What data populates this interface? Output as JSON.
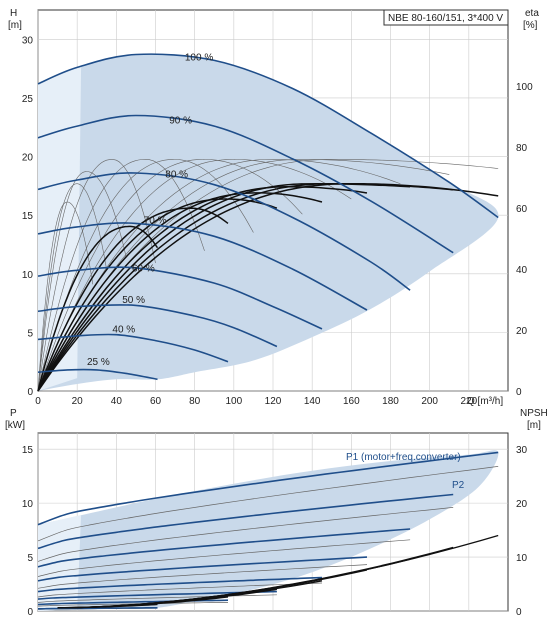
{
  "colors": {
    "area_fill": "#c9d9ea",
    "area_fill_light": "#e6eff8",
    "curve_blue": "#1f4e8a",
    "grid": "#cccccc",
    "axis": "#333333",
    "thin_line": "#666666",
    "black_line": "#111111"
  },
  "chart_data": [
    {
      "type": "line",
      "title": "NBE 80-160/151, 3*400 V",
      "xlabel": "Q [m³/h]",
      "y_left_label": [
        "H",
        "[m]"
      ],
      "y_right_label": [
        "eta",
        "[%]"
      ],
      "x_ticks": [
        0,
        20,
        40,
        60,
        80,
        100,
        120,
        140,
        160,
        180,
        200,
        220
      ],
      "x_tick_labels": [
        "0",
        "20",
        "40",
        "60",
        "80",
        "100",
        "120",
        "140",
        "160",
        "180",
        "200",
        "220"
      ],
      "xlim": [
        0,
        240
      ],
      "y_left_ticks": [
        0,
        5,
        10,
        15,
        20,
        25,
        30
      ],
      "ylim_left": [
        0,
        32.5
      ],
      "y_right_ticks": [
        0,
        20,
        40,
        60,
        80,
        100
      ],
      "ylim_right": [
        0,
        125
      ],
      "speed_labels": [
        "100 %",
        "90 %",
        "80 %",
        "70 %",
        "60 %",
        "50 %",
        "40 %",
        "25 %"
      ],
      "speed_label_positions": [
        [
          75,
          28.2
        ],
        [
          67,
          22.8
        ],
        [
          65,
          18.2
        ],
        [
          54,
          14.3
        ],
        [
          48,
          10.2
        ],
        [
          43,
          7.5
        ],
        [
          38,
          5.0
        ],
        [
          25,
          2.2
        ]
      ],
      "series": [
        {
          "label": "100 %",
          "q_max": 235,
          "x": [
            0,
            20,
            50,
            90,
            130,
            170,
            210,
            235
          ],
          "y": [
            26.2,
            27.6,
            28.7,
            28.2,
            25.8,
            22.0,
            17.8,
            14.8
          ]
        },
        {
          "label": "90 %",
          "q_max": 212,
          "x": [
            0,
            20,
            50,
            90,
            130,
            170,
            212
          ],
          "y": [
            21.6,
            22.6,
            23.5,
            22.6,
            19.8,
            16.2,
            11.8
          ]
        },
        {
          "label": "80 %",
          "q_max": 190,
          "x": [
            0,
            20,
            50,
            90,
            130,
            170,
            190
          ],
          "y": [
            17.2,
            18.0,
            18.6,
            17.6,
            14.8,
            11.0,
            8.6
          ]
        },
        {
          "label": "70 %",
          "q_max": 168,
          "x": [
            0,
            20,
            50,
            90,
            130,
            168
          ],
          "y": [
            13.4,
            14.0,
            14.3,
            13.2,
            10.4,
            6.9
          ]
        },
        {
          "label": "60 %",
          "q_max": 145,
          "x": [
            0,
            20,
            50,
            90,
            120,
            145
          ],
          "y": [
            9.8,
            10.3,
            10.5,
            9.2,
            7.2,
            5.3
          ]
        },
        {
          "label": "50 %",
          "q_max": 122,
          "x": [
            0,
            20,
            50,
            80,
            100,
            122
          ],
          "y": [
            6.8,
            7.2,
            7.3,
            6.4,
            5.4,
            3.8
          ]
        },
        {
          "label": "40 %",
          "q_max": 97,
          "x": [
            0,
            20,
            40,
            60,
            80,
            97
          ],
          "y": [
            4.4,
            4.7,
            4.8,
            4.3,
            3.5,
            2.5
          ]
        },
        {
          "label": "25 %",
          "q_max": 61,
          "x": [
            0,
            15,
            30,
            45,
            61
          ],
          "y": [
            1.6,
            1.8,
            1.8,
            1.5,
            1.0
          ]
        }
      ],
      "envelope": {
        "x": [
          0,
          20,
          50,
          90,
          130,
          170,
          210,
          235,
          200,
          170,
          140,
          110,
          80,
          61,
          40,
          20,
          0
        ],
        "y": [
          26.2,
          27.6,
          28.7,
          28.2,
          25.8,
          22.0,
          17.8,
          14.8,
          10.2,
          7.0,
          4.6,
          2.6,
          1.6,
          1.0,
          1.0,
          0.6,
          0
        ]
      },
      "light_region": {
        "x": [
          0,
          22,
          20,
          0
        ],
        "y": [
          26.2,
          27.7,
          1.1,
          0
        ]
      },
      "eta_curves": [
        {
          "q_max": 235,
          "peak_q": 160,
          "peak": 68,
          "end": 64
        },
        {
          "q_max": 212,
          "peak_q": 150,
          "peak": 68,
          "end": 66
        },
        {
          "q_max": 190,
          "peak_q": 140,
          "peak": 68,
          "end": 67
        },
        {
          "q_max": 168,
          "peak_q": 128,
          "peak": 67,
          "end": 65
        },
        {
          "q_max": 145,
          "peak_q": 112,
          "peak": 65,
          "end": 62
        },
        {
          "q_max": 122,
          "peak_q": 96,
          "peak": 63,
          "end": 60
        },
        {
          "q_max": 97,
          "peak_q": 78,
          "peak": 60,
          "end": 55
        },
        {
          "q_max": 61,
          "peak_q": 47,
          "peak": 54,
          "end": 47
        }
      ],
      "thin_eta_curves": [
        {
          "q_max": 235,
          "peak_q": 150,
          "peak": 76,
          "end": 73
        },
        {
          "q_max": 210,
          "peak_q": 135,
          "peak": 76,
          "end": 71
        },
        {
          "q_max": 185,
          "peak_q": 120,
          "peak": 76,
          "end": 68
        },
        {
          "q_max": 160,
          "peak_q": 100,
          "peak": 76,
          "end": 63
        },
        {
          "q_max": 135,
          "peak_q": 85,
          "peak": 76,
          "end": 58
        },
        {
          "q_max": 110,
          "peak_q": 70,
          "peak": 76,
          "end": 52
        },
        {
          "q_max": 85,
          "peak_q": 55,
          "peak": 76,
          "end": 46
        },
        {
          "q_max": 60,
          "peak_q": 38,
          "peak": 76,
          "end": 42
        }
      ],
      "thin_eta_extra": [
        {
          "q_max": 45,
          "peak_q": 25,
          "peak": 72,
          "end": 44
        },
        {
          "q_max": 35,
          "peak_q": 20,
          "peak": 68,
          "end": 40
        },
        {
          "q_max": 28,
          "peak_q": 15,
          "peak": 62,
          "end": 35
        }
      ]
    },
    {
      "type": "line",
      "x_ticks": [
        0,
        20,
        40,
        60,
        80,
        100,
        120,
        140,
        160,
        180,
        200,
        220
      ],
      "xlim": [
        0,
        240
      ],
      "y_left_label": [
        "P",
        "[kW]"
      ],
      "y_right_label": [
        "NPSH",
        "[m]"
      ],
      "y_left_ticks": [
        0,
        5,
        10,
        15
      ],
      "ylim_left": [
        0,
        16.5
      ],
      "y_right_ticks": [
        0,
        10,
        20,
        30
      ],
      "ylim_right": [
        0,
        33
      ],
      "annotations": [
        "P1 (motor+freq.converter)",
        "P2"
      ],
      "p1_series": [
        {
          "q_max": 235,
          "p0": 8.0,
          "pend": 14.7
        },
        {
          "q_max": 212,
          "p0": 5.8,
          "pend": 10.8
        },
        {
          "q_max": 190,
          "p0": 4.1,
          "pend": 7.6
        },
        {
          "q_max": 168,
          "p0": 2.8,
          "pend": 5.0
        },
        {
          "q_max": 145,
          "p0": 1.8,
          "pend": 3.1
        },
        {
          "q_max": 122,
          "p0": 1.1,
          "pend": 1.8
        },
        {
          "q_max": 97,
          "p0": 0.6,
          "pend": 1.0
        },
        {
          "q_max": 61,
          "p0": 0.2,
          "pend": 0.3
        }
      ],
      "p2_series": [
        {
          "q_max": 235,
          "p0": 6.5,
          "pend": 13.4
        },
        {
          "q_max": 212,
          "p0": 4.6,
          "pend": 9.6
        },
        {
          "q_max": 190,
          "p0": 3.2,
          "pend": 6.6
        },
        {
          "q_max": 168,
          "p0": 2.1,
          "pend": 4.3
        },
        {
          "q_max": 145,
          "p0": 1.3,
          "pend": 2.6
        },
        {
          "q_max": 122,
          "p0": 0.8,
          "pend": 1.5
        },
        {
          "q_max": 97,
          "p0": 0.45,
          "pend": 0.8
        },
        {
          "q_max": 61,
          "p0": 0.15,
          "pend": 0.25
        }
      ],
      "p_envelope": {
        "x": [
          0,
          20,
          60,
          100,
          140,
          180,
          220,
          235,
          225,
          200,
          170,
          140,
          110,
          80,
          61,
          40,
          20,
          0
        ],
        "y": [
          8.0,
          8.8,
          10.4,
          11.8,
          13.0,
          13.9,
          14.5,
          14.7,
          11.5,
          8.5,
          5.8,
          3.6,
          2.0,
          0.9,
          0.3,
          0.2,
          0.1,
          0
        ]
      },
      "npsh_series": [
        {
          "q_max": 235,
          "n_end": 14.0
        },
        {
          "q_max": 212,
          "n_end": 11.8
        },
        {
          "q_max": 190,
          "n_end": 9.6
        },
        {
          "q_max": 168,
          "n_end": 7.6
        },
        {
          "q_max": 145,
          "n_end": 5.6
        },
        {
          "q_max": 122,
          "n_end": 4.0
        },
        {
          "q_max": 97,
          "n_end": 2.6
        },
        {
          "q_max": 61,
          "n_end": 1.2
        }
      ]
    }
  ]
}
